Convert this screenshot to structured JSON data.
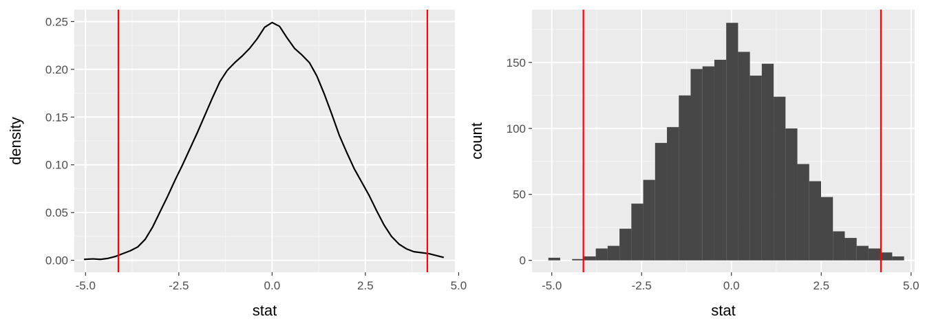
{
  "chart_data": [
    {
      "type": "line",
      "xlabel": "stat",
      "ylabel": "density",
      "xlim": [
        -5.3,
        4.9
      ],
      "ylim": [
        -0.0125,
        0.2625
      ],
      "x_ticks": [
        -5.0,
        -2.5,
        0.0,
        2.5,
        5.0
      ],
      "x_tick_labels": [
        "-5.0",
        "-2.5",
        "0.0",
        "2.5",
        "5.0"
      ],
      "y_ticks": [
        0.0,
        0.05,
        0.1,
        0.15,
        0.2,
        0.25
      ],
      "y_tick_labels": [
        "0.00",
        "0.05",
        "0.10",
        "0.15",
        "0.20",
        "0.25"
      ],
      "grid": true,
      "background": "#ebebeb",
      "line_color": "#000000",
      "vline_color": "#ff0000",
      "vlines": [
        -4.12,
        4.16
      ],
      "series": [
        {
          "x": [
            -5.04,
            -4.8,
            -4.6,
            -4.4,
            -4.2,
            -4.0,
            -3.8,
            -3.6,
            -3.4,
            -3.2,
            -3.0,
            -2.8,
            -2.6,
            -2.4,
            -2.2,
            -2.0,
            -1.8,
            -1.6,
            -1.4,
            -1.2,
            -1.0,
            -0.8,
            -0.6,
            -0.4,
            -0.2,
            0.0,
            0.2,
            0.4,
            0.6,
            0.8,
            1.0,
            1.2,
            1.4,
            1.6,
            1.8,
            2.0,
            2.2,
            2.4,
            2.6,
            2.8,
            3.0,
            3.2,
            3.4,
            3.6,
            3.8,
            4.0,
            4.2,
            4.4,
            4.6
          ],
          "y": [
            0.001,
            0.0015,
            0.001,
            0.002,
            0.004,
            0.007,
            0.01,
            0.014,
            0.022,
            0.035,
            0.051,
            0.067,
            0.084,
            0.1,
            0.117,
            0.134,
            0.152,
            0.17,
            0.187,
            0.199,
            0.207,
            0.214,
            0.222,
            0.232,
            0.244,
            0.249,
            0.245,
            0.233,
            0.222,
            0.215,
            0.207,
            0.193,
            0.174,
            0.153,
            0.131,
            0.113,
            0.096,
            0.082,
            0.068,
            0.052,
            0.037,
            0.025,
            0.017,
            0.012,
            0.009,
            0.008,
            0.007,
            0.005,
            0.003
          ]
        }
      ]
    },
    {
      "type": "bar",
      "xlabel": "stat",
      "ylabel": "count",
      "xlim": [
        -5.55,
        5.1
      ],
      "ylim": [
        -9,
        190
      ],
      "x_ticks": [
        -5.0,
        -2.5,
        0.0,
        2.5,
        5.0
      ],
      "x_tick_labels": [
        "-5.0",
        "-2.5",
        "0.0",
        "2.5",
        "5.0"
      ],
      "y_ticks": [
        0,
        50,
        100,
        150
      ],
      "y_tick_labels": [
        "0",
        "50",
        "100",
        "150"
      ],
      "grid": true,
      "background": "#ebebeb",
      "bar_color": "#474747",
      "vline_color": "#ff0000",
      "vlines": [
        -4.12,
        4.16
      ],
      "bin_width": 0.33,
      "bin_centers": [
        -4.93,
        -4.6,
        -4.27,
        -3.94,
        -3.61,
        -3.28,
        -2.95,
        -2.62,
        -2.29,
        -1.96,
        -1.63,
        -1.3,
        -0.97,
        -0.64,
        -0.31,
        0.02,
        0.35,
        0.68,
        1.01,
        1.34,
        1.67,
        2.0,
        2.33,
        2.66,
        2.99,
        3.32,
        3.65,
        3.98,
        4.31,
        4.64
      ],
      "values": [
        2,
        0,
        1,
        3,
        9,
        11,
        24,
        43,
        61,
        89,
        101,
        125,
        145,
        147,
        152,
        180,
        158,
        140,
        149,
        124,
        100,
        73,
        60,
        48,
        22,
        17,
        11,
        9,
        6,
        3
      ]
    }
  ]
}
